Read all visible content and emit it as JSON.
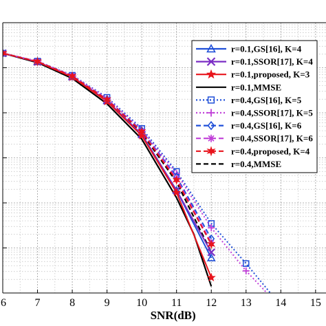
{
  "chart_data": {
    "type": "line",
    "title": "",
    "xlabel": "SNR(dB)",
    "ylabel": "",
    "x_ticks": [
      "6",
      "7",
      "8",
      "9",
      "10",
      "11",
      "12",
      "13",
      "14",
      "15"
    ],
    "xlim": [
      6,
      15.3
    ],
    "y_scale": "log",
    "ylim": [
      1e-06,
      1
    ],
    "grid": true,
    "minor_grid": true,
    "legend_position": "top-right",
    "series": [
      {
        "name": "r=0.1,GS[16], K=4",
        "color": "#1f4fd8",
        "line": "solid",
        "marker": "triangle",
        "x": [
          6,
          7,
          8,
          9,
          10,
          11,
          12
        ],
        "y": [
          0.21,
          0.135,
          0.063,
          0.0185,
          0.0033,
          0.00019,
          6e-06
        ]
      },
      {
        "name": "r=0.1,SSOR[17], K=4",
        "color": "#7a2cc4",
        "line": "solid",
        "marker": "x",
        "x": [
          6,
          7,
          8,
          9,
          10,
          11,
          12
        ],
        "y": [
          0.21,
          0.135,
          0.063,
          0.0185,
          0.0033,
          0.00019,
          8e-06
        ]
      },
      {
        "name": "r=0.1,proposed, K=3",
        "color": "#e8141c",
        "line": "solid",
        "marker": "star",
        "x": [
          6,
          7,
          8,
          9,
          10,
          11,
          12
        ],
        "y": [
          0.21,
          0.135,
          0.062,
          0.0178,
          0.0031,
          0.00017,
          2.2e-06
        ]
      },
      {
        "name": "r=0.1,MMSE",
        "color": "#000000",
        "line": "solid",
        "marker": "none",
        "x": [
          6,
          7,
          8,
          9,
          10,
          11,
          11.5,
          12
        ],
        "y": [
          0.21,
          0.13,
          0.058,
          0.0158,
          0.0026,
          0.00013,
          2e-05,
          1.4e-06
        ]
      },
      {
        "name": "r=0.4,GS[16], K=5",
        "color": "#1f4fd8",
        "line": "dotted",
        "marker": "square",
        "x": [
          6,
          7,
          8,
          9,
          10,
          11,
          12,
          13,
          13.7
        ],
        "y": [
          0.21,
          0.14,
          0.068,
          0.022,
          0.0045,
          0.0005,
          3.5e-05,
          4.5e-06,
          1e-06
        ]
      },
      {
        "name": "r=0.4,SSOR[17], K=5",
        "color": "#c040d8",
        "line": "dotted",
        "marker": "plus",
        "x": [
          6,
          7,
          8,
          9,
          10,
          11,
          12,
          13,
          13.6
        ],
        "y": [
          0.21,
          0.14,
          0.067,
          0.021,
          0.0042,
          0.00045,
          2.8e-05,
          3.1e-06,
          1e-06
        ]
      },
      {
        "name": "r=0.4,GS[16], K=6",
        "color": "#1f4fd8",
        "line": "dashed",
        "marker": "diamond",
        "x": [
          6,
          7,
          8,
          9,
          10,
          11,
          12
        ],
        "y": [
          0.21,
          0.138,
          0.066,
          0.02,
          0.004,
          0.00038,
          1.6e-05
        ]
      },
      {
        "name": "r=0.4,SSOR[17], K=6",
        "color": "#c040d8",
        "line": "dashed",
        "marker": "asterisk",
        "x": [
          6,
          7,
          8,
          9,
          10,
          11,
          12
        ],
        "y": [
          0.21,
          0.138,
          0.066,
          0.0198,
          0.0039,
          0.00035,
          1.3e-05
        ]
      },
      {
        "name": "r=0.4,proposed, K=4",
        "color": "#e8141c",
        "line": "dashed",
        "marker": "hexagram",
        "x": [
          6,
          7,
          8,
          9,
          10,
          11,
          12
        ],
        "y": [
          0.21,
          0.137,
          0.065,
          0.0195,
          0.0038,
          0.00032,
          1.2e-05
        ]
      },
      {
        "name": "r=0.4,MMSE",
        "color": "#000000",
        "line": "dashed",
        "marker": "none",
        "x": [
          6,
          7,
          8,
          9,
          10,
          11,
          12
        ],
        "y": [
          0.21,
          0.136,
          0.064,
          0.019,
          0.0036,
          0.00029,
          8e-06
        ]
      }
    ]
  }
}
